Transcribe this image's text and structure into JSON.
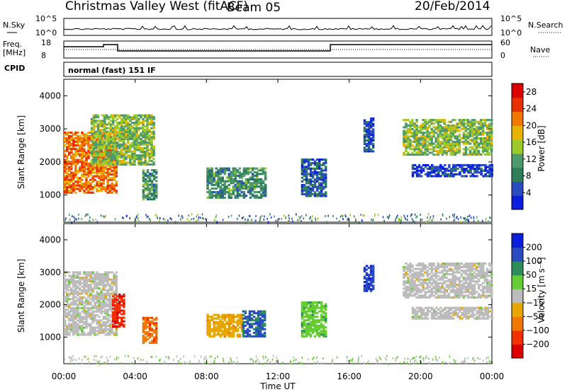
{
  "header": {
    "station": "Christmas Valley West (fitACF)",
    "beam": "Beam 05",
    "date": "20/Feb/2014",
    "cpid_label": "CPID",
    "mode": "normal (fast) 151 IF"
  },
  "top_panels": {
    "nsky": {
      "left_label": "N.Sky",
      "right_label": "N.Search",
      "left_ticks": [
        "10^5",
        "10^0"
      ],
      "right_ticks": [
        "10^5",
        "10^0"
      ]
    },
    "freq": {
      "left_label_1": "Freq.",
      "left_label_2": "[MHz]",
      "right_label": "Nave",
      "left_ticks": [
        "18",
        "8"
      ],
      "right_ticks": [
        "60",
        "0"
      ]
    }
  },
  "chart_data": [
    {
      "type": "heatmap",
      "parameter": "Power",
      "ylabel": "Slant Range [km]",
      "xlabel": "Time UT",
      "ylim": [
        180,
        4500
      ],
      "yticks": [
        1000,
        2000,
        3000,
        4000
      ],
      "colorbar": {
        "label": "Power [dB]",
        "ticks": [
          4,
          8,
          12,
          16,
          20,
          24,
          28
        ],
        "range": [
          0,
          30
        ],
        "colors": [
          "#0a1edc",
          "#2a4cc0",
          "#2e7e5a",
          "#4f9a6a",
          "#9acb2a",
          "#e6b400",
          "#f07800",
          "#e83000",
          "#dd0000"
        ]
      },
      "regions": [
        {
          "name": "early-strong",
          "t": [
            0.0,
            3.0
          ],
          "r": [
            1050,
            2900
          ],
          "power": 22
        },
        {
          "name": "early-upper",
          "t": [
            1.5,
            5.0
          ],
          "r": [
            1900,
            3400
          ],
          "power": 14
        },
        {
          "name": "dawn-low",
          "t": [
            4.4,
            5.2
          ],
          "r": [
            850,
            1750
          ],
          "power": 10
        },
        {
          "name": "morning-band",
          "t": [
            8.0,
            11.3
          ],
          "r": [
            900,
            1800
          ],
          "power": 10
        },
        {
          "name": "noon-patch",
          "t": [
            13.3,
            14.7
          ],
          "r": [
            950,
            2100
          ],
          "power": 6
        },
        {
          "name": "afternoon-spot",
          "t": [
            16.8,
            17.4
          ],
          "r": [
            2300,
            3300
          ],
          "power": 5
        },
        {
          "name": "evening-upper",
          "t": [
            19.0,
            24.0
          ],
          "r": [
            2200,
            3300
          ],
          "power": 14
        },
        {
          "name": "evening-lower",
          "t": [
            19.5,
            24.0
          ],
          "r": [
            1550,
            1900
          ],
          "power": 4
        }
      ]
    },
    {
      "type": "heatmap",
      "parameter": "Velocity",
      "ylabel": "Slant Range [km]",
      "xlabel": "Time UT",
      "ylim": [
        180,
        4500
      ],
      "yticks": [
        1000,
        2000,
        3000,
        4000
      ],
      "colorbar": {
        "label": "Velocity [m s⁻¹]",
        "ticks": [
          200,
          100,
          50,
          15,
          -15,
          -50,
          -100,
          -200
        ],
        "range": [
          -250,
          250
        ],
        "colors": [
          "#dd0000",
          "#f03000",
          "#f07800",
          "#e6a800",
          "#bcbcbc",
          "#66cc33",
          "#2e8e5a",
          "#2a4cc0",
          "#0a1edc"
        ]
      },
      "regions": [
        {
          "name": "early-gray",
          "t": [
            0.0,
            3.0
          ],
          "r": [
            1050,
            3000
          ],
          "velocity": 0
        },
        {
          "name": "early-red-streak",
          "t": [
            2.7,
            3.4
          ],
          "r": [
            1300,
            2300
          ],
          "velocity": -180
        },
        {
          "name": "dawn-orange",
          "t": [
            4.4,
            5.2
          ],
          "r": [
            800,
            1600
          ],
          "velocity": -120
        },
        {
          "name": "morning-orange",
          "t": [
            8.0,
            10.0
          ],
          "r": [
            1000,
            1700
          ],
          "velocity": -60
        },
        {
          "name": "morning-blue",
          "t": [
            10.0,
            11.3
          ],
          "r": [
            1000,
            1800
          ],
          "velocity": 150
        },
        {
          "name": "noon-mixed",
          "t": [
            13.3,
            14.7
          ],
          "r": [
            1000,
            2100
          ],
          "velocity": 60
        },
        {
          "name": "afternoon-blue",
          "t": [
            16.8,
            17.4
          ],
          "r": [
            2400,
            3200
          ],
          "velocity": 180
        },
        {
          "name": "evening-gray-upper",
          "t": [
            19.0,
            24.0
          ],
          "r": [
            2200,
            3300
          ],
          "velocity": 0
        },
        {
          "name": "evening-gray-lower",
          "t": [
            19.5,
            24.0
          ],
          "r": [
            1550,
            1900
          ],
          "velocity": 0
        }
      ]
    }
  ],
  "time_axis": {
    "label": "Time UT",
    "range_hours": [
      0,
      24
    ],
    "ticks": [
      {
        "t": 0,
        "label": "00:00"
      },
      {
        "t": 4,
        "label": "04:00"
      },
      {
        "t": 8,
        "label": "08:00"
      },
      {
        "t": 12,
        "label": "12:00"
      },
      {
        "t": 16,
        "label": "16:00"
      },
      {
        "t": 20,
        "label": "20:00"
      },
      {
        "t": 24,
        "label": "00:00"
      }
    ]
  }
}
